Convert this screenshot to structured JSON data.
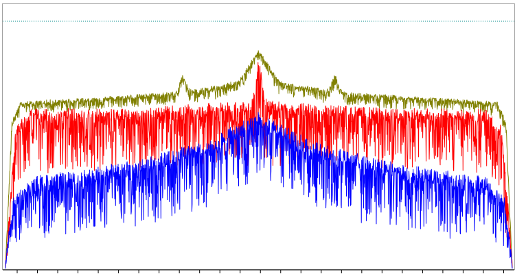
{
  "chart_data": {
    "type": "line",
    "title": "",
    "xlabel": "",
    "ylabel": "",
    "grid": false,
    "legend": "none",
    "xlim": [
      -1,
      1
    ],
    "ylim": [
      0,
      1
    ],
    "x_tick_count": 25,
    "threshold": {
      "value": 0.94,
      "color": "#008b8b",
      "style": "dotted"
    },
    "series": [
      {
        "color": "#808000",
        "description_points": [
          {
            "x": -1.0,
            "y": 0.0
          },
          {
            "x": -0.975,
            "y": 0.55
          },
          {
            "x": -0.94,
            "y": 0.62
          },
          {
            "x": -0.6,
            "y": 0.64
          },
          {
            "x": -0.3,
            "y": 0.66
          },
          {
            "x": -0.08,
            "y": 0.7
          },
          {
            "x": 0.0,
            "y": 0.82
          },
          {
            "x": 0.08,
            "y": 0.7
          },
          {
            "x": 0.3,
            "y": 0.66
          },
          {
            "x": 0.6,
            "y": 0.64
          },
          {
            "x": 0.94,
            "y": 0.62
          },
          {
            "x": 0.975,
            "y": 0.55
          },
          {
            "x": 1.0,
            "y": 0.0
          }
        ],
        "peaks": [
          {
            "x": -0.3,
            "y": 0.72
          },
          {
            "x": -0.15,
            "y": 0.68
          },
          {
            "x": 0.0,
            "y": 0.82
          },
          {
            "x": 0.15,
            "y": 0.68
          },
          {
            "x": 0.3,
            "y": 0.72
          }
        ]
      },
      {
        "color": "#ff0000",
        "description_points": [
          {
            "x": -1.0,
            "y": 0.0
          },
          {
            "x": -0.96,
            "y": 0.5
          },
          {
            "x": -0.9,
            "y": 0.57
          },
          {
            "x": -0.5,
            "y": 0.57
          },
          {
            "x": 0.0,
            "y": 0.6
          },
          {
            "x": 0.5,
            "y": 0.57
          },
          {
            "x": 0.9,
            "y": 0.57
          },
          {
            "x": 0.96,
            "y": 0.5
          },
          {
            "x": 1.0,
            "y": 0.0
          }
        ],
        "peaks": [
          {
            "x": 0.0,
            "y": 0.76
          }
        ]
      },
      {
        "color": "#0000ff",
        "description_points": [
          {
            "x": -1.0,
            "y": 0.0
          },
          {
            "x": -0.97,
            "y": 0.22
          },
          {
            "x": -0.9,
            "y": 0.3
          },
          {
            "x": -0.5,
            "y": 0.36
          },
          {
            "x": -0.2,
            "y": 0.44
          },
          {
            "x": 0.0,
            "y": 0.55
          },
          {
            "x": 0.2,
            "y": 0.44
          },
          {
            "x": 0.5,
            "y": 0.36
          },
          {
            "x": 0.9,
            "y": 0.3
          },
          {
            "x": 0.97,
            "y": 0.22
          },
          {
            "x": 1.0,
            "y": 0.0
          }
        ],
        "peaks": []
      }
    ]
  }
}
